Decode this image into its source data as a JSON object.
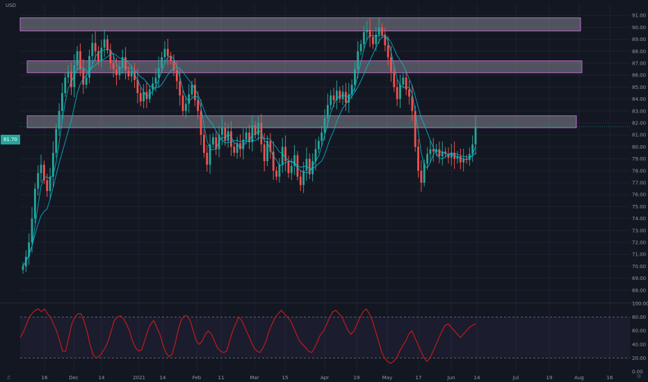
{
  "currency": "USD",
  "current_price": "81.70",
  "colors": {
    "up": "#26a69a",
    "down": "#ef5350",
    "ma": "#00bcd4",
    "zone": "#9b9da6",
    "zone_border": "#ba68c8",
    "rsi": "#b71c1c",
    "bg": "#131722"
  },
  "icons": {
    "left": "z-icon",
    "right": "settings-icon"
  },
  "corner_left": "Z",
  "corner_right": "⚙",
  "chart_data": [
    {
      "type": "candlestick",
      "ylim": [
        67,
        92
      ],
      "y_ticks": [
        "68.00",
        "69.00",
        "70.00",
        "71.00",
        "72.00",
        "73.00",
        "74.00",
        "75.00",
        "76.00",
        "77.00",
        "78.00",
        "79.00",
        "80.00",
        "81.00",
        "82.00",
        "83.00",
        "84.00",
        "85.00",
        "86.00",
        "87.00",
        "88.00",
        "89.00",
        "90.00",
        "91.00"
      ],
      "x_ticks": [
        "16",
        "Dec",
        "14",
        "2021",
        "14",
        "Feb",
        "11",
        "Mar",
        "15",
        "Apr",
        "19",
        "May",
        "17",
        "Jun",
        "14",
        "Jul",
        "19",
        "Aug",
        "16"
      ],
      "zones": [
        [
          89.7,
          90.8
        ],
        [
          86.2,
          87.2
        ],
        [
          81.6,
          82.6
        ]
      ],
      "close": [
        70.0,
        70.8,
        72.0,
        74.0,
        76.5,
        77.8,
        78.5,
        77.2,
        76.3,
        77.5,
        79.5,
        81.5,
        83.0,
        84.5,
        85.8,
        86.3,
        85.0,
        86.8,
        88.0,
        86.5,
        85.2,
        85.8,
        87.6,
        88.7,
        88.0,
        87.2,
        88.3,
        89.0,
        88.1,
        87.0,
        86.5,
        86.0,
        86.7,
        87.5,
        86.4,
        85.9,
        86.3,
        85.6,
        84.5,
        83.8,
        84.6,
        84.0,
        84.8,
        85.3,
        85.8,
        86.6,
        87.5,
        88.2,
        87.6,
        87.2,
        86.4,
        85.5,
        84.3,
        83.0,
        83.6,
        84.4,
        85.2,
        83.9,
        83.0,
        81.0,
        79.5,
        78.5,
        80.2,
        80.8,
        79.8,
        81.0,
        81.6,
        80.5,
        81.3,
        80.0,
        79.5,
        80.3,
        79.8,
        80.6,
        81.2,
        80.4,
        81.8,
        81.0,
        82.0,
        80.2,
        78.8,
        80.5,
        79.6,
        78.0,
        77.5,
        78.5,
        80.0,
        78.8,
        77.8,
        78.4,
        79.3,
        77.5,
        76.8,
        78.0,
        79.0,
        77.7,
        78.8,
        79.8,
        80.5,
        81.2,
        82.4,
        83.5,
        84.3,
        83.9,
        84.7,
        84.0,
        84.6,
        83.7,
        84.4,
        85.2,
        86.5,
        88.0,
        88.6,
        89.6,
        89.8,
        89.2,
        88.6,
        89.4,
        90.0,
        89.4,
        88.5,
        87.5,
        86.3,
        85.0,
        84.0,
        85.2,
        85.8,
        84.8,
        84.2,
        83.0,
        80.0,
        78.0,
        77.0,
        78.6,
        79.4,
        79.8,
        79.6,
        79.8,
        79.2,
        79.6,
        79.4,
        79.1,
        79.5,
        79.0,
        79.2,
        78.7,
        79.0,
        78.9,
        79.4,
        80.2,
        81.7
      ],
      "series": [
        {
          "type": "line",
          "ma_period": 4
        },
        {
          "type": "line",
          "ma_period": 9
        }
      ]
    },
    {
      "type": "line",
      "ylim": [
        0,
        100
      ],
      "y_ticks": [
        "0.00",
        "20.00",
        "40.00",
        "60.00",
        "80.00",
        "100.00"
      ],
      "levels": [
        20,
        80
      ],
      "values": [
        50,
        58,
        68,
        80,
        86,
        90,
        92,
        88,
        92,
        85,
        80,
        70,
        60,
        45,
        30,
        30,
        50,
        70,
        80,
        85,
        85,
        75,
        60,
        40,
        25,
        20,
        22,
        28,
        35,
        45,
        60,
        75,
        80,
        82,
        78,
        70,
        60,
        45,
        35,
        30,
        32,
        45,
        60,
        70,
        75,
        65,
        55,
        40,
        28,
        22,
        25,
        40,
        60,
        75,
        82,
        82,
        75,
        60,
        45,
        40,
        45,
        55,
        60,
        55,
        45,
        35,
        30,
        28,
        30,
        45,
        60,
        70,
        80,
        75,
        65,
        55,
        45,
        35,
        30,
        28,
        35,
        45,
        60,
        70,
        80,
        85,
        90,
        85,
        80,
        75,
        65,
        55,
        45,
        40,
        35,
        30,
        28,
        35,
        45,
        55,
        60,
        70,
        80,
        88,
        90,
        85,
        80,
        70,
        60,
        55,
        60,
        70,
        80,
        88,
        92,
        85,
        75,
        60,
        45,
        30,
        20,
        15,
        12,
        15,
        20,
        30,
        38,
        45,
        55,
        60,
        50,
        40,
        30,
        20,
        15,
        20,
        30,
        40,
        50,
        60,
        68,
        70,
        65,
        60,
        55,
        50,
        55,
        60,
        65,
        68,
        70
      ]
    }
  ]
}
